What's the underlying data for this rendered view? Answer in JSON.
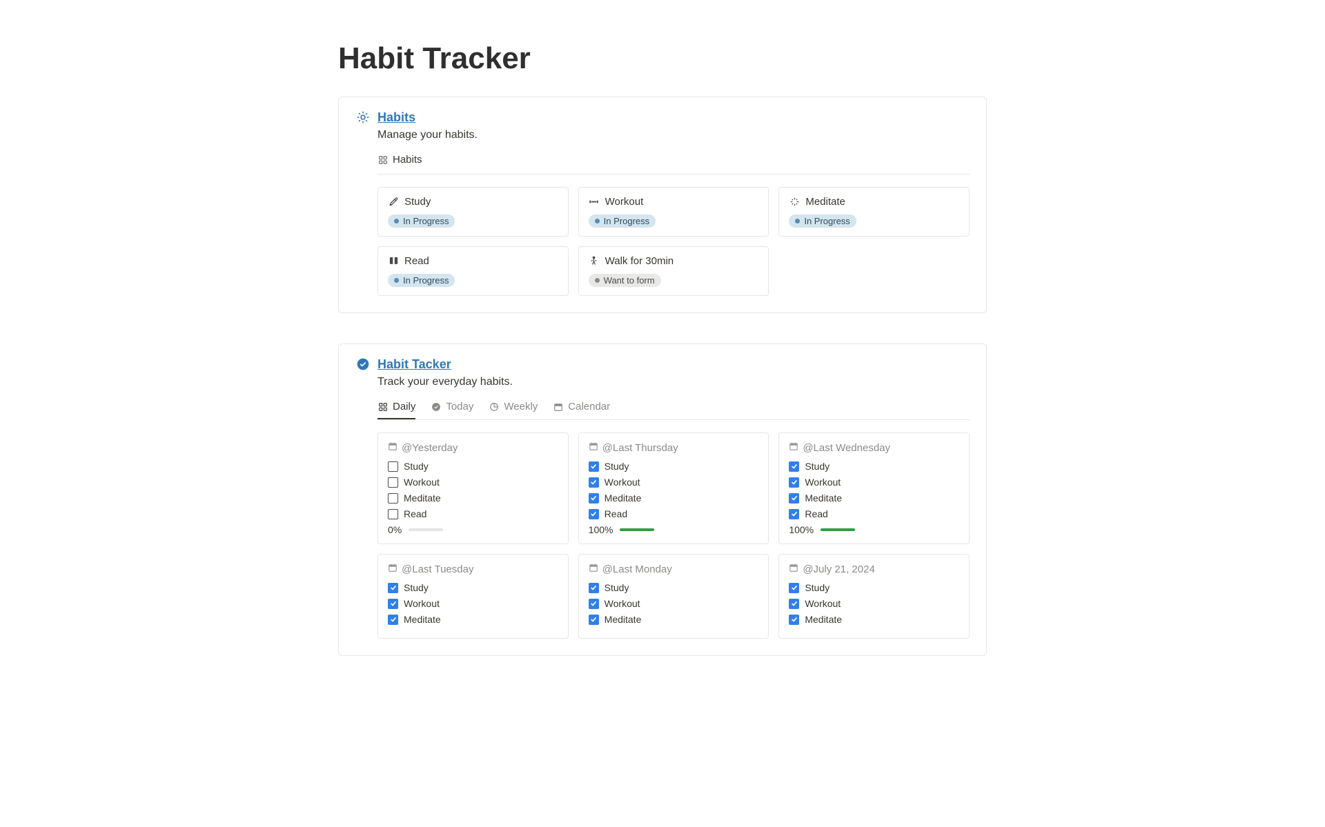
{
  "page": {
    "title": "Habit Tracker"
  },
  "habits_panel": {
    "title": "Habits",
    "description": "Manage your habits.",
    "toolbar_view": "Habits",
    "cards": [
      {
        "icon": "pencil",
        "title": "Study",
        "status": "In Progress",
        "status_style": "blue"
      },
      {
        "icon": "dumbbell",
        "title": "Workout",
        "status": "In Progress",
        "status_style": "blue"
      },
      {
        "icon": "sparkle",
        "title": "Meditate",
        "status": "In Progress",
        "status_style": "blue"
      },
      {
        "icon": "book",
        "title": "Read",
        "status": "In Progress",
        "status_style": "blue"
      },
      {
        "icon": "walk",
        "title": "Walk for 30min",
        "status": "Want to form",
        "status_style": "gray"
      }
    ]
  },
  "tracker_panel": {
    "title": "Habit Tacker",
    "description": "Track your everyday habits.",
    "tabs": [
      {
        "icon": "gallery",
        "label": "Daily",
        "active": true
      },
      {
        "icon": "check",
        "label": "Today",
        "active": false
      },
      {
        "icon": "pie",
        "label": "Weekly",
        "active": false
      },
      {
        "icon": "calendar",
        "label": "Calendar",
        "active": false
      }
    ],
    "days": [
      {
        "label": "@Yesterday",
        "items": [
          {
            "label": "Study",
            "checked": false
          },
          {
            "label": "Workout",
            "checked": false
          },
          {
            "label": "Meditate",
            "checked": false
          },
          {
            "label": "Read",
            "checked": false
          }
        ],
        "progress_label": "0%",
        "progress_pct": 0
      },
      {
        "label": "@Last Thursday",
        "items": [
          {
            "label": "Study",
            "checked": true
          },
          {
            "label": "Workout",
            "checked": true
          },
          {
            "label": "Meditate",
            "checked": true
          },
          {
            "label": "Read",
            "checked": true
          }
        ],
        "progress_label": "100%",
        "progress_pct": 100
      },
      {
        "label": "@Last Wednesday",
        "items": [
          {
            "label": "Study",
            "checked": true
          },
          {
            "label": "Workout",
            "checked": true
          },
          {
            "label": "Meditate",
            "checked": true
          },
          {
            "label": "Read",
            "checked": true
          }
        ],
        "progress_label": "100%",
        "progress_pct": 100
      },
      {
        "label": "@Last Tuesday",
        "items": [
          {
            "label": "Study",
            "checked": true
          },
          {
            "label": "Workout",
            "checked": true
          },
          {
            "label": "Meditate",
            "checked": true
          }
        ],
        "progress_label": null,
        "progress_pct": null
      },
      {
        "label": "@Last Monday",
        "items": [
          {
            "label": "Study",
            "checked": true
          },
          {
            "label": "Workout",
            "checked": true
          },
          {
            "label": "Meditate",
            "checked": true
          }
        ],
        "progress_label": null,
        "progress_pct": null
      },
      {
        "label": "@July 21, 2024",
        "items": [
          {
            "label": "Study",
            "checked": true
          },
          {
            "label": "Workout",
            "checked": true
          },
          {
            "label": "Meditate",
            "checked": true
          }
        ],
        "progress_label": null,
        "progress_pct": null
      }
    ]
  },
  "colors": {
    "link": "#2f78b7",
    "badge_blue_bg": "#d3e5ef",
    "badge_gray_bg": "#e8e8e6",
    "checkbox_checked": "#2f80ed",
    "progress_fill": "#2f9e44",
    "border": "#e6e6e4"
  }
}
